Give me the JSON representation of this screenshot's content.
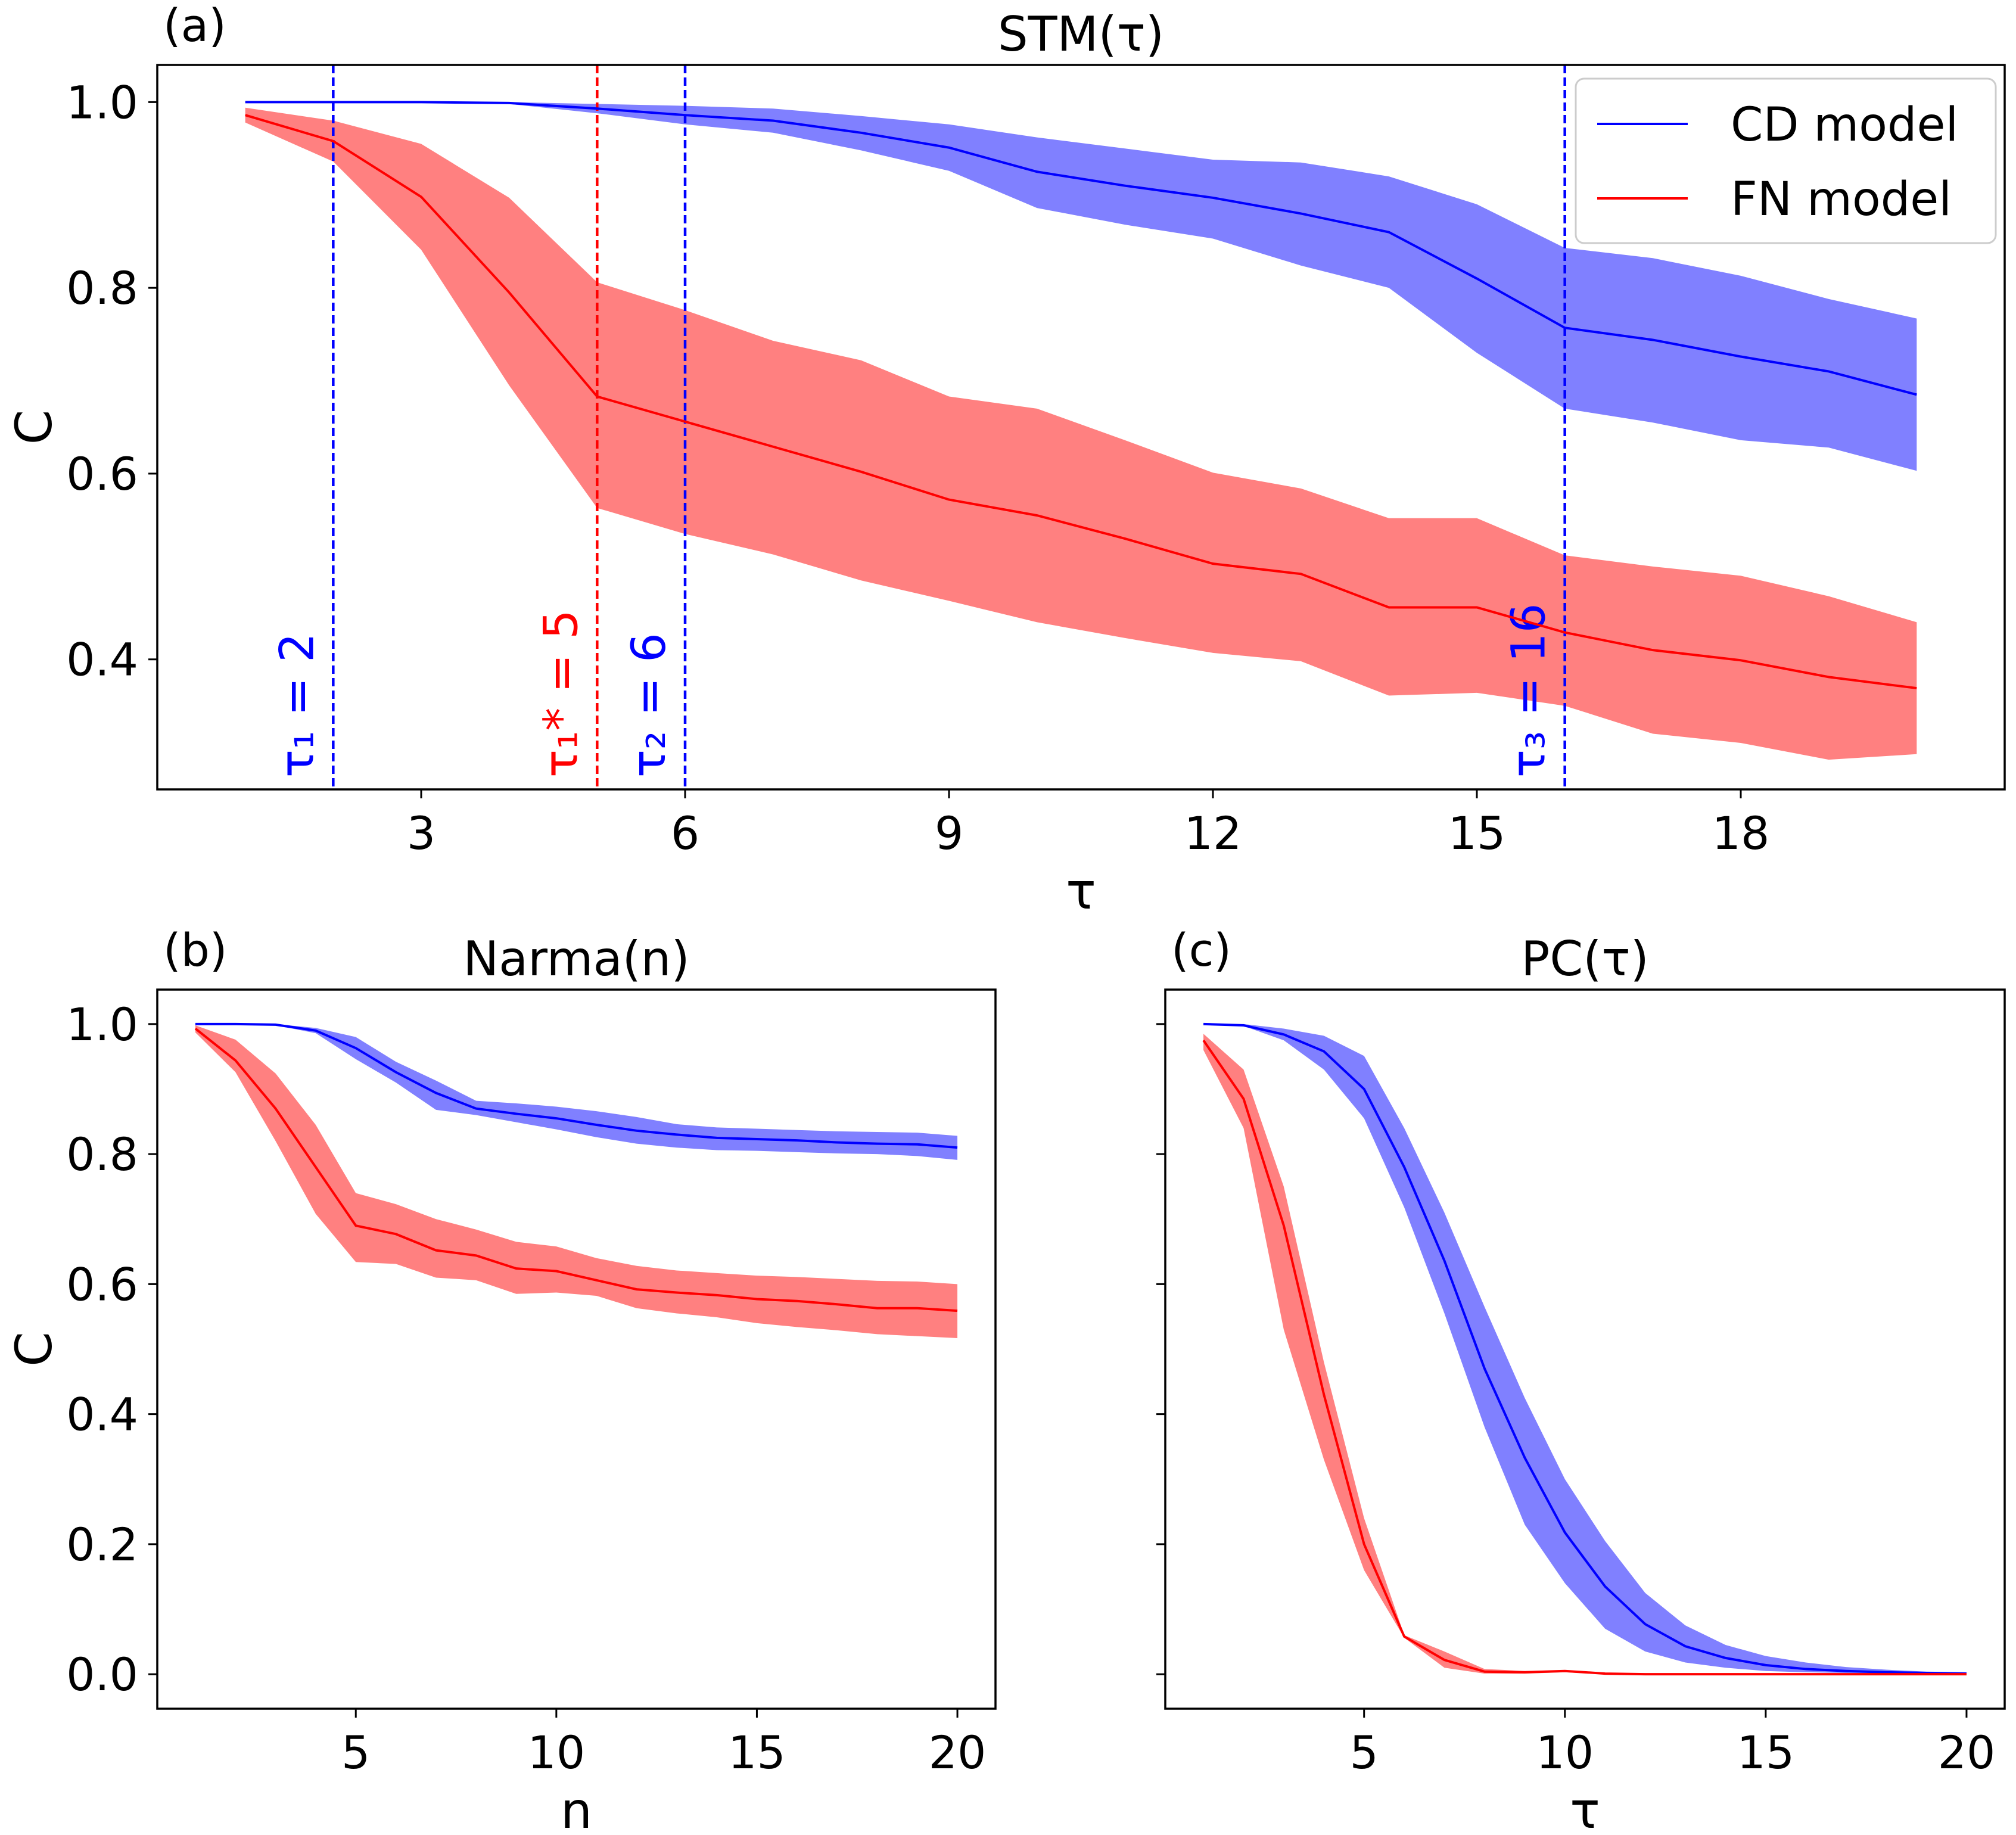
{
  "colors": {
    "cd": "#0000ff",
    "fn": "#ff0000",
    "cd_band": "#8080ff",
    "fn_band": "#ff8080"
  },
  "legend": {
    "items": [
      {
        "key": "cd",
        "label": "CD model"
      },
      {
        "key": "fn",
        "label": "FN model"
      }
    ],
    "placement": "top-right"
  },
  "chart_data": [
    {
      "id": "a",
      "panel_label": "(a)",
      "type": "line",
      "title": "STM(τ)",
      "xlabel": "τ",
      "ylabel": "C",
      "xlim": [
        0.0,
        21.0
      ],
      "ylim": [
        0.26,
        1.04
      ],
      "xticks": [
        3,
        6,
        9,
        12,
        15,
        18
      ],
      "yticks": [
        0.4,
        0.6,
        0.8,
        1.0
      ],
      "ytick_labels": [
        "0.4",
        "0.6",
        "0.8",
        "1.0"
      ],
      "x": [
        1,
        2,
        3,
        4,
        5,
        6,
        7,
        8,
        9,
        10,
        11,
        12,
        13,
        14,
        15,
        16,
        17,
        18,
        19,
        20
      ],
      "series": [
        {
          "name": "CD model",
          "key": "cd",
          "values": [
            1.0,
            1.0,
            1.0,
            0.999,
            0.993,
            0.986,
            0.98,
            0.967,
            0.951,
            0.925,
            0.91,
            0.897,
            0.88,
            0.86,
            0.81,
            0.757,
            0.744,
            0.726,
            0.71,
            0.685
          ],
          "upper": [
            1.0,
            1.0,
            1.0,
            1.0,
            0.998,
            0.996,
            0.993,
            0.985,
            0.976,
            0.962,
            0.95,
            0.938,
            0.935,
            0.92,
            0.89,
            0.843,
            0.832,
            0.813,
            0.788,
            0.767
          ],
          "lower": [
            1.0,
            1.0,
            1.0,
            0.998,
            0.988,
            0.976,
            0.967,
            0.948,
            0.926,
            0.886,
            0.868,
            0.853,
            0.824,
            0.8,
            0.73,
            0.67,
            0.655,
            0.636,
            0.628,
            0.603
          ]
        },
        {
          "name": "FN model",
          "key": "fn",
          "values": [
            0.986,
            0.958,
            0.898,
            0.795,
            0.683,
            0.656,
            0.629,
            0.602,
            0.572,
            0.555,
            0.53,
            0.503,
            0.492,
            0.456,
            0.456,
            0.429,
            0.41,
            0.399,
            0.381,
            0.369
          ],
          "upper": [
            0.994,
            0.98,
            0.955,
            0.897,
            0.806,
            0.776,
            0.743,
            0.722,
            0.683,
            0.67,
            0.636,
            0.601,
            0.584,
            0.552,
            0.552,
            0.512,
            0.5,
            0.49,
            0.468,
            0.44
          ],
          "lower": [
            0.978,
            0.936,
            0.841,
            0.695,
            0.563,
            0.535,
            0.513,
            0.485,
            0.463,
            0.44,
            0.423,
            0.407,
            0.398,
            0.361,
            0.364,
            0.35,
            0.32,
            0.31,
            0.292,
            0.298
          ]
        }
      ],
      "vlines": [
        {
          "x": 2,
          "key": "cd",
          "label": "τ₁ = 2"
        },
        {
          "x": 5,
          "key": "fn",
          "label": "τ₁* = 5"
        },
        {
          "x": 6,
          "key": "cd",
          "label": "τ₂ = 6"
        },
        {
          "x": 16,
          "key": "cd",
          "label": "τ₃ = 16"
        }
      ]
    },
    {
      "id": "b",
      "panel_label": "(b)",
      "type": "line",
      "title": "Narma(n)",
      "xlabel": "n",
      "ylabel": "C",
      "xlim": [
        0.05,
        20.95
      ],
      "ylim": [
        -0.053,
        1.053
      ],
      "xticks": [
        5,
        10,
        15,
        20
      ],
      "yticks": [
        0.0,
        0.2,
        0.4,
        0.6,
        0.8,
        1.0
      ],
      "ytick_labels": [
        "0.0",
        "0.2",
        "0.4",
        "0.6",
        "0.8",
        "1.0"
      ],
      "x": [
        1,
        2,
        3,
        4,
        5,
        6,
        7,
        8,
        9,
        10,
        11,
        12,
        13,
        14,
        15,
        16,
        17,
        18,
        19,
        20
      ],
      "series": [
        {
          "name": "CD model",
          "key": "cd",
          "values": [
            1.0,
            1.0,
            0.999,
            0.99,
            0.963,
            0.926,
            0.894,
            0.87,
            0.862,
            0.855,
            0.845,
            0.836,
            0.83,
            0.825,
            0.823,
            0.821,
            0.818,
            0.816,
            0.815,
            0.81
          ],
          "upper": [
            1.0,
            1.0,
            1.0,
            0.994,
            0.98,
            0.942,
            0.913,
            0.882,
            0.878,
            0.873,
            0.866,
            0.857,
            0.846,
            0.841,
            0.839,
            0.837,
            0.835,
            0.834,
            0.833,
            0.828
          ],
          "lower": [
            1.0,
            1.0,
            0.998,
            0.986,
            0.946,
            0.91,
            0.868,
            0.86,
            0.849,
            0.838,
            0.826,
            0.816,
            0.81,
            0.806,
            0.805,
            0.803,
            0.801,
            0.8,
            0.797,
            0.791
          ]
        },
        {
          "name": "FN model",
          "key": "fn",
          "values": [
            0.993,
            0.944,
            0.87,
            0.78,
            0.69,
            0.677,
            0.652,
            0.644,
            0.624,
            0.62,
            0.606,
            0.592,
            0.587,
            0.583,
            0.577,
            0.574,
            0.569,
            0.563,
            0.563,
            0.559
          ],
          "upper": [
            0.998,
            0.976,
            0.924,
            0.845,
            0.74,
            0.723,
            0.7,
            0.684,
            0.665,
            0.658,
            0.64,
            0.628,
            0.621,
            0.617,
            0.613,
            0.611,
            0.608,
            0.605,
            0.604,
            0.6
          ],
          "lower": [
            0.987,
            0.926,
            0.82,
            0.708,
            0.634,
            0.631,
            0.61,
            0.606,
            0.585,
            0.587,
            0.582,
            0.563,
            0.555,
            0.549,
            0.54,
            0.534,
            0.529,
            0.523,
            0.52,
            0.517
          ]
        }
      ]
    },
    {
      "id": "c",
      "panel_label": "(c)",
      "type": "line",
      "title": "PC(τ)",
      "xlabel": "τ",
      "ylabel": "",
      "xlim": [
        0.05,
        20.95
      ],
      "ylim": [
        -0.053,
        1.053
      ],
      "xticks": [
        5,
        10,
        15,
        20
      ],
      "yticks": [
        0.0,
        0.2,
        0.4,
        0.6,
        0.8,
        1.0
      ],
      "ytick_labels": [],
      "x": [
        1,
        2,
        3,
        4,
        5,
        6,
        7,
        8,
        9,
        10,
        11,
        12,
        13,
        14,
        15,
        16,
        17,
        18,
        19,
        20
      ],
      "series": [
        {
          "name": "CD model",
          "key": "cd",
          "values": [
            1.0,
            0.998,
            0.984,
            0.958,
            0.9,
            0.78,
            0.636,
            0.47,
            0.333,
            0.218,
            0.135,
            0.077,
            0.043,
            0.025,
            0.014,
            0.008,
            0.005,
            0.003,
            0.002,
            0.001
          ],
          "upper": [
            1.0,
            1.0,
            0.993,
            0.982,
            0.951,
            0.84,
            0.71,
            0.565,
            0.425,
            0.3,
            0.205,
            0.125,
            0.075,
            0.045,
            0.028,
            0.018,
            0.011,
            0.007,
            0.004,
            0.003
          ],
          "lower": [
            1.0,
            0.997,
            0.975,
            0.93,
            0.855,
            0.718,
            0.555,
            0.38,
            0.23,
            0.14,
            0.07,
            0.035,
            0.018,
            0.01,
            0.005,
            0.003,
            0.002,
            0.001,
            0.0,
            0.0
          ]
        },
        {
          "name": "FN model",
          "key": "fn",
          "values": [
            0.975,
            0.885,
            0.69,
            0.43,
            0.2,
            0.058,
            0.022,
            0.004,
            0.003,
            0.005,
            0.001,
            0.0,
            0.0,
            0.0,
            0.0,
            0.0,
            0.0,
            0.0,
            0.0,
            0.0
          ],
          "upper": [
            0.985,
            0.93,
            0.75,
            0.48,
            0.24,
            0.06,
            0.035,
            0.008,
            0.005,
            0.006,
            0.002,
            0.001,
            0.001,
            0.0,
            0.0,
            0.0,
            0.0,
            0.0,
            0.0,
            0.0
          ],
          "lower": [
            0.96,
            0.84,
            0.53,
            0.33,
            0.16,
            0.056,
            0.01,
            0.001,
            0.001,
            0.003,
            0.0,
            0.0,
            0.0,
            0.0,
            0.0,
            0.0,
            0.0,
            0.0,
            0.0,
            0.0
          ]
        }
      ]
    }
  ]
}
